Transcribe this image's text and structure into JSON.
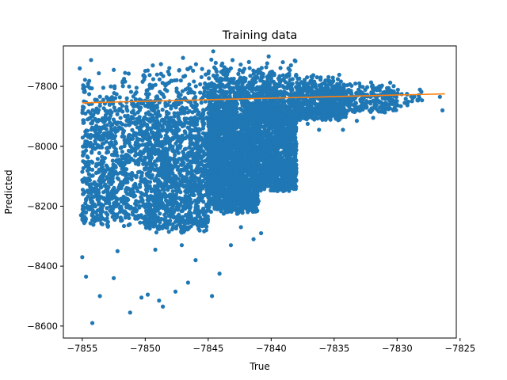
{
  "chart_data": {
    "type": "scatter",
    "title": "Training data",
    "xlabel": "True",
    "ylabel": "Predicted",
    "xlim": [
      -7856.5,
      -7825.3
    ],
    "ylim": [
      -8640,
      -7665
    ],
    "x_ticks": [
      -7855,
      -7850,
      -7845,
      -7840,
      -7835,
      -7830,
      -7825
    ],
    "x_tick_labels": [
      "−7855",
      "−7850",
      "−7845",
      "−7840",
      "−7835",
      "−7830",
      "−7825"
    ],
    "y_ticks": [
      -8600,
      -8400,
      -8200,
      -8000,
      -7800
    ],
    "y_tick_labels": [
      "−8600",
      "−8400",
      "−8200",
      "−8000",
      "−7800"
    ],
    "grid": false,
    "legend": "none",
    "colors": {
      "scatter": "#1f77b4",
      "fit_line": "#ff7f0e"
    },
    "series": [
      {
        "type": "scatter",
        "color": "#1f77b4",
        "points": [
          [
            -7854.2,
            -8590
          ],
          [
            -7851.2,
            -8555
          ],
          [
            -7848.6,
            -8535
          ],
          [
            -7848.9,
            -8515
          ],
          [
            -7849.8,
            -8495
          ],
          [
            -7850.3,
            -8505
          ],
          [
            -7853.6,
            -8500
          ],
          [
            -7844.7,
            -8500
          ],
          [
            -7847.6,
            -8485
          ],
          [
            -7846.6,
            -8455
          ],
          [
            -7844.1,
            -8425
          ],
          [
            -7852.5,
            -8440
          ],
          [
            -7854.7,
            -8435
          ],
          [
            -7855.0,
            -8370
          ],
          [
            -7852.2,
            -8350
          ],
          [
            -7849.2,
            -8345
          ],
          [
            -7846.0,
            -8380
          ],
          [
            -7847.1,
            -8330
          ],
          [
            -7843.2,
            -8330
          ],
          [
            -7841.4,
            -8310
          ],
          [
            -7840.8,
            -8290
          ],
          [
            -7842.4,
            -8270
          ],
          [
            -7853.8,
            -8230
          ],
          [
            -7855.1,
            -8230
          ],
          [
            -7851.0,
            -8220
          ],
          [
            -7838.0,
            -8085
          ],
          [
            -7838.6,
            -8055
          ],
          [
            -7837.1,
            -7925
          ],
          [
            -7836.2,
            -7945
          ],
          [
            -7834.3,
            -7945
          ],
          [
            -7833.2,
            -7915
          ],
          [
            -7831.9,
            -7905
          ],
          [
            -7830.3,
            -7880
          ],
          [
            -7829.4,
            -7855
          ],
          [
            -7826.6,
            -7835
          ],
          [
            -7826.4,
            -7880
          ],
          [
            -7831.6,
            -7850
          ],
          [
            -7833.0,
            -7790
          ],
          [
            -7832.0,
            -7800
          ],
          [
            -7840.2,
            -7700
          ],
          [
            -7844.6,
            -7683
          ],
          [
            -7847.0,
            -7705
          ],
          [
            -7849.4,
            -7730
          ],
          [
            -7854.3,
            -7712
          ],
          [
            -7855.2,
            -7740
          ],
          [
            -7852.5,
            -7745
          ],
          [
            -7851.6,
            -7755
          ]
        ],
        "clusters": [
          {
            "x": [
              -7855.0,
              -7850.0
            ],
            "y": [
              -8330,
              -7720
            ],
            "count": 900
          },
          {
            "x": [
              -7850.0,
              -7845.0
            ],
            "y": [
              -8350,
              -7710
            ],
            "count": 1400
          },
          {
            "x": [
              -7845.0,
              -7841.0
            ],
            "y": [
              -8280,
              -7700
            ],
            "count": 2600
          },
          {
            "x": [
              -7841.0,
              -7838.0
            ],
            "y": [
              -8200,
              -7710
            ],
            "count": 1500
          },
          {
            "x": [
              -7838.0,
              -7834.0
            ],
            "y": [
              -7930,
              -7760
            ],
            "count": 600
          },
          {
            "x": [
              -7834.0,
              -7830.0
            ],
            "y": [
              -7900,
              -7780
            ],
            "count": 220
          },
          {
            "x": [
              -7830.0,
              -7828.0
            ],
            "y": [
              -7875,
              -7800
            ],
            "count": 25
          }
        ]
      },
      {
        "type": "line",
        "color": "#ff7f0e",
        "x": [
          -7855.0,
          -7826.2
        ],
        "y": [
          -7855,
          -7825
        ]
      }
    ]
  }
}
